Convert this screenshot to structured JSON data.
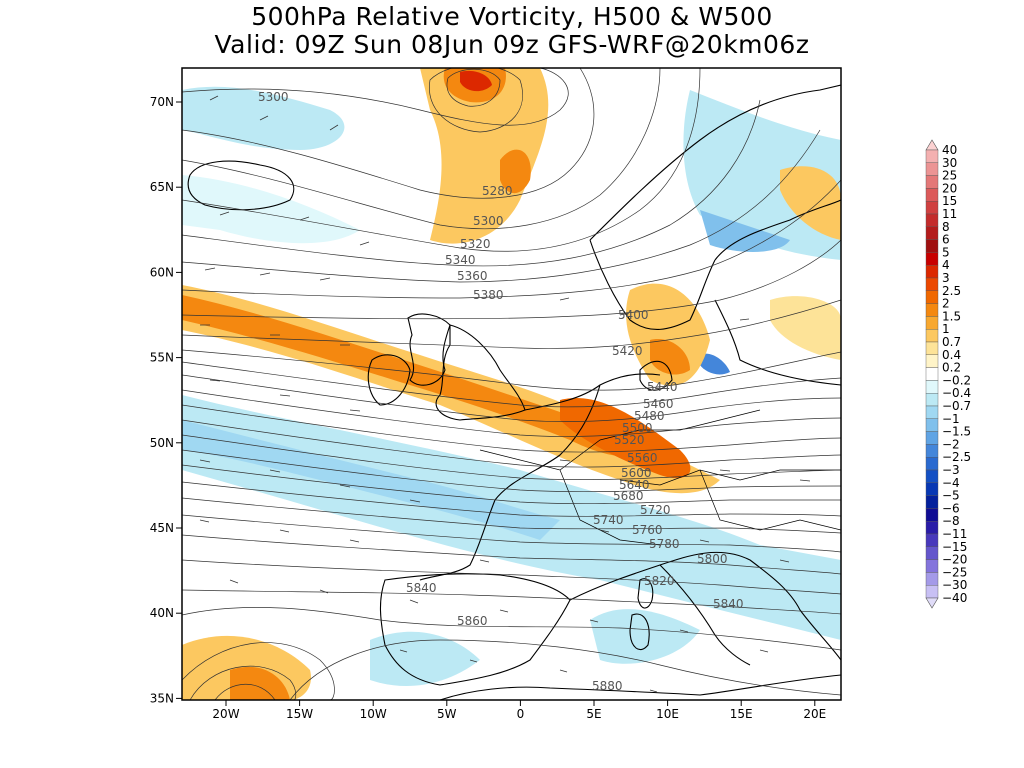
{
  "title": {
    "line1": "500hPa Relative Vorticity, H500 & W500",
    "line2": "Valid: 09Z Sun 08Jun 09z GFS-WRF@20km06z"
  },
  "lon_ticks": [
    "20W",
    "15W",
    "10W",
    "5W",
    "0",
    "5E",
    "10E",
    "15E",
    "20E"
  ],
  "lat_ticks": [
    "70N",
    "65N",
    "60N",
    "55N",
    "50N",
    "45N",
    "40N",
    "35N"
  ],
  "contour_labels": [
    "5300",
    "5280",
    "5300",
    "5320",
    "5340",
    "5360",
    "5380",
    "5400",
    "5420",
    "5440",
    "5460",
    "5480",
    "5500",
    "5520",
    "5560",
    "5600",
    "5640",
    "5680",
    "5720",
    "5740",
    "5760",
    "5780",
    "5800",
    "5820",
    "5840",
    "5840",
    "5860",
    "5880"
  ],
  "colorbar": {
    "labels": [
      "40",
      "30",
      "25",
      "20",
      "15",
      "11",
      "8",
      "6",
      "5",
      "4",
      "3",
      "2.5",
      "2",
      "1.5",
      "1",
      "0.7",
      "0.4",
      "0.2",
      "−0.2",
      "−0.4",
      "−0.7",
      "−1",
      "−1.5",
      "−2",
      "−2.5",
      "−3",
      "−4",
      "−5",
      "−6",
      "−8",
      "−11",
      "−15",
      "−20",
      "−25",
      "−30",
      "−40"
    ],
    "colors": [
      "#fcd2d2",
      "#f4b0b0",
      "#ec9494",
      "#e47878",
      "#dc5a5a",
      "#d04040",
      "#c42c2c",
      "#b41c1c",
      "#a01010",
      "#c80000",
      "#dc2800",
      "#ec4800",
      "#f06800",
      "#f48810",
      "#f8a830",
      "#fcc860",
      "#fde398",
      "#fff4c8",
      "#ffffff",
      "#e0f8fb",
      "#bce9f4",
      "#a0d8f2",
      "#80c0ec",
      "#60a4e4",
      "#4486da",
      "#2a6ad0",
      "#1450c4",
      "#0838b4",
      "#04209c",
      "#100c94",
      "#2a1ca8",
      "#4838bc",
      "#6456cc",
      "#8474dc",
      "#a49ae8",
      "#c8c0f4",
      "#e0dcf8"
    ]
  }
}
